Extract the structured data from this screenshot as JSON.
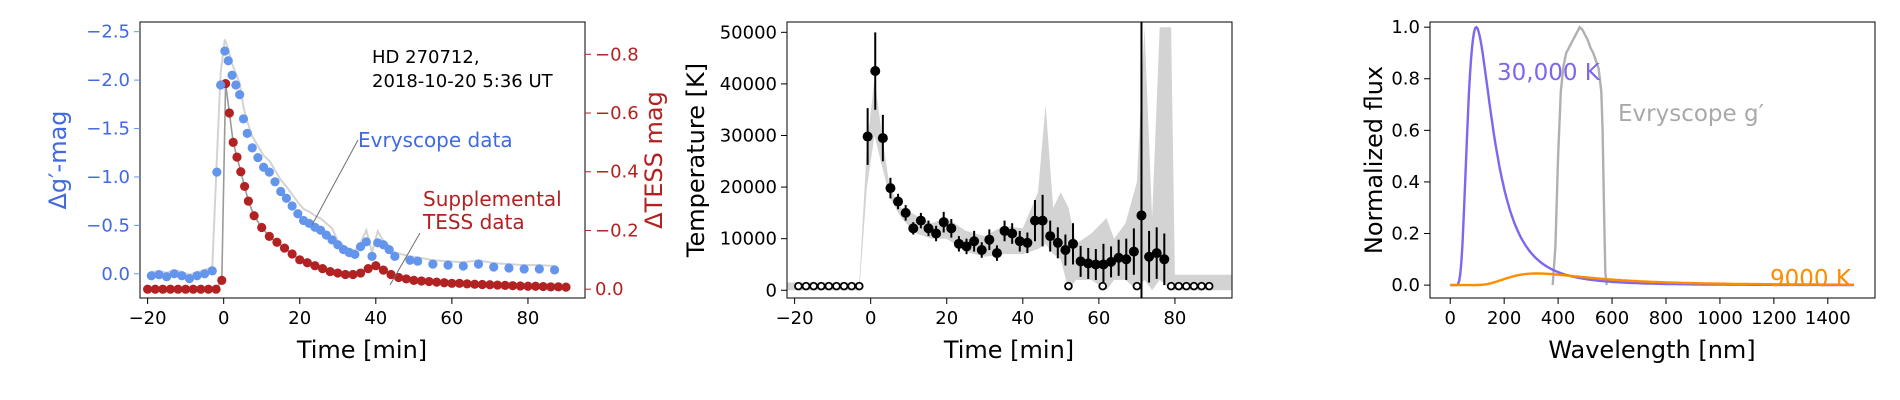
{
  "colors": {
    "blue": "#6495ed",
    "red": "#b22222",
    "gray_band": "#d3d3d3",
    "violet": "#7b68ee",
    "orange": "#ff8c00",
    "filter_gray": "#b0b0b0",
    "label_blue": "#4169e1",
    "label_red": "#b22222"
  },
  "chart_data": [
    {
      "type": "scatter",
      "annotation": "HD 270712,\n2018-10-20 5:36 UT",
      "xlabel": "Time [min]",
      "ylabel_left": "Δg′-mag",
      "ylabel_right": "ΔTESS mag",
      "xlim": [
        -22,
        95
      ],
      "ylim_left": [
        0.25,
        -2.6
      ],
      "ylim_right": [
        0.03,
        -0.91
      ],
      "xticks": [
        "−20",
        "0",
        "20",
        "40",
        "60",
        "80"
      ],
      "yticks_left": [
        "−2.5",
        "−2.0",
        "−1.5",
        "−1.0",
        "−0.5",
        "0.0"
      ],
      "yticks_right": [
        "−0.8",
        "−0.6",
        "−0.4",
        "−0.2",
        "0.0"
      ],
      "labels": {
        "evryscope": "Evryscope data",
        "tess_line1": "Supplemental",
        "tess_line2": "TESS data"
      },
      "series": [
        {
          "name": "Evryscope data",
          "axis": "left",
          "x": [
            -19,
            -17,
            -15,
            -13,
            -11,
            -9,
            -7,
            -5,
            -3,
            -1.8,
            -0.8,
            0.3,
            1.2,
            2.2,
            3.2,
            4.2,
            5.2,
            6.2,
            7.5,
            9,
            10.5,
            12,
            13.5,
            15,
            16.5,
            18,
            19.5,
            21,
            22.5,
            24,
            25.5,
            27,
            28.5,
            30,
            31.5,
            33,
            34.5,
            36,
            37.5,
            39,
            40.5,
            42,
            43.5,
            45,
            49,
            51,
            55,
            59,
            63,
            67,
            71,
            75,
            79,
            83,
            87
          ],
          "y": [
            0.02,
            0.01,
            0.03,
            0.0,
            0.02,
            0.05,
            0.02,
            0.0,
            -0.03,
            -1.05,
            -1.95,
            -2.3,
            -2.2,
            -2.05,
            -1.95,
            -1.85,
            -1.6,
            -1.45,
            -1.3,
            -1.2,
            -1.1,
            -1.05,
            -0.95,
            -0.85,
            -0.78,
            -0.7,
            -0.62,
            -0.55,
            -0.52,
            -0.48,
            -0.45,
            -0.4,
            -0.35,
            -0.3,
            -0.25,
            -0.22,
            -0.2,
            -0.28,
            -0.33,
            -0.18,
            -0.32,
            -0.3,
            -0.25,
            -0.18,
            -0.14,
            -0.13,
            -0.1,
            -0.09,
            -0.08,
            -0.1,
            -0.07,
            -0.06,
            -0.05,
            -0.05,
            -0.04
          ]
        },
        {
          "name": "Supplemental TESS data",
          "axis": "right",
          "x": [
            -20,
            -18,
            -16,
            -14,
            -12,
            -10,
            -8,
            -6,
            -4,
            -2,
            -0.5,
            0.5,
            1.5,
            2.5,
            3.5,
            4.5,
            5.5,
            6.5,
            8,
            10,
            12,
            14,
            16,
            18,
            20,
            22,
            24,
            26,
            28,
            30,
            32,
            34,
            36,
            38,
            40,
            42,
            44,
            46,
            48,
            50,
            52,
            54,
            56,
            58,
            60,
            62,
            64,
            66,
            68,
            70,
            72,
            74,
            76,
            78,
            80,
            82,
            84,
            86,
            88,
            90
          ],
          "y": [
            0.0,
            0.0,
            0.0,
            0.0,
            0.0,
            0.0,
            0.0,
            0.0,
            0.0,
            0.0,
            -0.03,
            -0.7,
            -0.6,
            -0.5,
            -0.45,
            -0.4,
            -0.35,
            -0.3,
            -0.25,
            -0.21,
            -0.18,
            -0.16,
            -0.14,
            -0.12,
            -0.1,
            -0.09,
            -0.08,
            -0.07,
            -0.06,
            -0.055,
            -0.05,
            -0.05,
            -0.055,
            -0.07,
            -0.08,
            -0.065,
            -0.05,
            -0.04,
            -0.035,
            -0.03,
            -0.028,
            -0.026,
            -0.024,
            -0.022,
            -0.02,
            -0.02,
            -0.018,
            -0.017,
            -0.016,
            -0.015,
            -0.014,
            -0.013,
            -0.012,
            -0.011,
            -0.01,
            -0.01,
            -0.009,
            -0.008,
            -0.008,
            -0.007
          ]
        }
      ]
    },
    {
      "type": "scatter",
      "xlabel": "Time [min]",
      "ylabel": "Temperature [K]",
      "xlim": [
        -22,
        95
      ],
      "ylim": [
        -1500,
        52000
      ],
      "xticks": [
        "−20",
        "0",
        "20",
        "40",
        "60",
        "80"
      ],
      "yticks": [
        "0",
        "10000",
        "20000",
        "30000",
        "40000",
        "50000"
      ],
      "series": [
        {
          "name": "",
          "x": [
            -0.8,
            1.2,
            3.2,
            5.2,
            7.2,
            9.2,
            11.2,
            13.2,
            15.2,
            17.2,
            19.2,
            21.2,
            23.2,
            25.2,
            27.2,
            29.2,
            31.2,
            33.2,
            35.2,
            37.2,
            39.2,
            41.2,
            43.2,
            45.2,
            47.2,
            49.2,
            51.2,
            53.2,
            55.2,
            57.2,
            59.2,
            61.2,
            63.2,
            65.2,
            67.2,
            69.2,
            71.2,
            73.2,
            75.2,
            77.2
          ],
          "y": [
            29800,
            42500,
            29500,
            19800,
            17200,
            15000,
            12000,
            13500,
            12000,
            11000,
            13200,
            12000,
            9000,
            8500,
            9500,
            7800,
            9800,
            7200,
            11500,
            11000,
            9500,
            9200,
            13500,
            13500,
            10500,
            9200,
            7800,
            9000,
            5600,
            5200,
            5000,
            5000,
            5500,
            6300,
            6000,
            7500,
            14500,
            6500,
            7200,
            6000
          ],
          "yerr": [
            5500,
            7500,
            4500,
            2000,
            1500,
            1500,
            1200,
            1500,
            1500,
            1500,
            2000,
            1800,
            1500,
            1500,
            2000,
            1500,
            2000,
            1500,
            2000,
            2000,
            2000,
            2000,
            4000,
            5000,
            3000,
            3000,
            3000,
            4000,
            3000,
            3000,
            3000,
            4000,
            3000,
            3500,
            4000,
            4500,
            40000,
            5000,
            5000,
            5000
          ]
        },
        {
          "name": "",
          "open_markers": true,
          "x": [
            -19,
            -17,
            -15,
            -13,
            -11,
            -9,
            -7,
            -5,
            -3,
            52,
            61,
            70,
            79,
            81,
            83,
            85,
            87,
            89
          ],
          "y": [
            800,
            800,
            800,
            800,
            800,
            800,
            800,
            800,
            800,
            800,
            800,
            800,
            800,
            800,
            800,
            800,
            800,
            800
          ]
        }
      ],
      "band_upper": [
        [
          -22,
          1500
        ],
        [
          -3,
          1500
        ],
        [
          -1,
          28000
        ],
        [
          1,
          41000
        ],
        [
          3,
          30000
        ],
        [
          5,
          20000
        ],
        [
          8,
          16000
        ],
        [
          12,
          14500
        ],
        [
          16,
          13000
        ],
        [
          20,
          14000
        ],
        [
          25,
          11500
        ],
        [
          30,
          10500
        ],
        [
          35,
          12500
        ],
        [
          40,
          12000
        ],
        [
          44,
          19000
        ],
        [
          46,
          36000
        ],
        [
          48,
          16000
        ],
        [
          50,
          19000
        ],
        [
          52,
          16000
        ],
        [
          54,
          9000
        ],
        [
          58,
          11000
        ],
        [
          62,
          14000
        ],
        [
          64,
          10000
        ],
        [
          67,
          13000
        ],
        [
          70,
          21000
        ],
        [
          72,
          51000
        ],
        [
          74,
          14000
        ],
        [
          76,
          51000
        ],
        [
          79,
          51000
        ],
        [
          80,
          3000
        ],
        [
          95,
          3000
        ]
      ],
      "band_lower": [
        [
          -22,
          0
        ],
        [
          -3,
          0
        ],
        [
          -1,
          20000
        ],
        [
          1,
          30000
        ],
        [
          3,
          24000
        ],
        [
          5,
          18000
        ],
        [
          8,
          14000
        ],
        [
          12,
          11000
        ],
        [
          16,
          10000
        ],
        [
          20,
          10000
        ],
        [
          25,
          7500
        ],
        [
          30,
          6500
        ],
        [
          35,
          7000
        ],
        [
          40,
          7000
        ],
        [
          44,
          8000
        ],
        [
          46,
          9000
        ],
        [
          48,
          7000
        ],
        [
          50,
          6000
        ],
        [
          52,
          0
        ],
        [
          54,
          2000
        ],
        [
          58,
          2000
        ],
        [
          62,
          0
        ],
        [
          64,
          2000
        ],
        [
          67,
          2000
        ],
        [
          70,
          0
        ],
        [
          72,
          2000
        ],
        [
          74,
          0
        ],
        [
          76,
          2000
        ],
        [
          79,
          0
        ],
        [
          80,
          0
        ],
        [
          95,
          0
        ]
      ]
    },
    {
      "type": "line",
      "xlabel": "Wavelength [nm]",
      "ylabel": "Normalized flux",
      "xlim": [
        -75,
        1575
      ],
      "ylim": [
        -0.05,
        1.02
      ],
      "xticks": [
        "0",
        "200",
        "400",
        "600",
        "800",
        "1000",
        "1200",
        "1400"
      ],
      "yticks": [
        "0.0",
        "0.2",
        "0.4",
        "0.6",
        "0.8",
        "1.0"
      ],
      "labels": {
        "t30000": "30,000 K",
        "filter": "Evryscope g′",
        "t9000": "9000 K"
      },
      "series": [
        {
          "name": "30,000 K",
          "temperature_k": 30000,
          "x_range": [
            0,
            1500
          ],
          "peak": 1.0
        },
        {
          "name": "9000 K",
          "temperature_k": 9000,
          "x_range": [
            0,
            1500
          ],
          "peak": 0.045
        },
        {
          "name": "Evryscope g′",
          "x": [
            380,
            390,
            400,
            410,
            420,
            430,
            440,
            450,
            460,
            470,
            480,
            490,
            500,
            510,
            520,
            530,
            540,
            550,
            560,
            565,
            570,
            575,
            580
          ],
          "y": [
            0.0,
            0.15,
            0.5,
            0.75,
            0.85,
            0.9,
            0.92,
            0.94,
            0.96,
            0.98,
            1.0,
            0.99,
            0.97,
            0.95,
            0.92,
            0.9,
            0.87,
            0.84,
            0.75,
            0.6,
            0.3,
            0.05,
            0.0
          ]
        }
      ]
    }
  ]
}
